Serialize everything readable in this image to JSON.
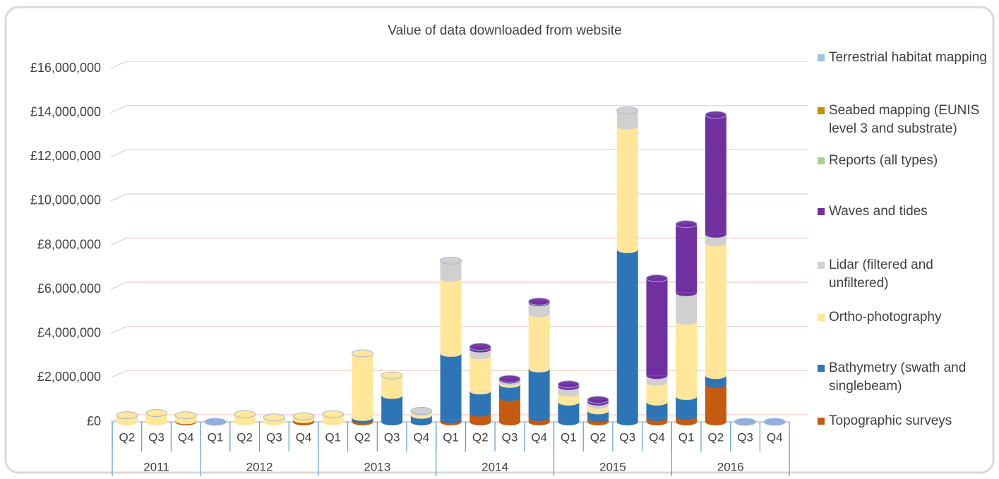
{
  "chart_data": {
    "type": "stacked_bar",
    "title": "Value of data downloaded from website",
    "categories": [
      "Q2",
      "Q3",
      "Q4",
      "Q1",
      "Q2",
      "Q3",
      "Q4",
      "Q1",
      "Q2",
      "Q3",
      "Q4",
      "Q1",
      "Q2",
      "Q3",
      "Q4",
      "Q1",
      "Q2",
      "Q3",
      "Q4",
      "Q1",
      "Q2",
      "Q3",
      "Q4"
    ],
    "category_groups": [
      {
        "label": "2011",
        "span": 3
      },
      {
        "label": "2012",
        "span": 4
      },
      {
        "label": "2013",
        "span": 4
      },
      {
        "label": "2014",
        "span": 4
      },
      {
        "label": "2015",
        "span": 4
      },
      {
        "label": "2016",
        "span": 4
      }
    ],
    "series": [
      {
        "name": "Topographic surveys",
        "color": "#c55a11",
        "values": [
          0,
          0,
          50000,
          0,
          0,
          0,
          100000,
          0,
          100000,
          0,
          0,
          100000,
          400000,
          1100000,
          200000,
          0,
          150000,
          0,
          200000,
          250000,
          1700000,
          0,
          0
        ]
      },
      {
        "name": "Bathymetry (swath and singlebeam)",
        "color": "#2e75b6",
        "values": [
          0,
          0,
          0,
          0,
          0,
          0,
          0,
          0,
          100000,
          1200000,
          300000,
          3000000,
          1000000,
          600000,
          2200000,
          900000,
          350000,
          7800000,
          700000,
          900000,
          400000,
          0,
          0
        ]
      },
      {
        "name": "Ortho-photography",
        "color": "#ffe699",
        "values": [
          300000,
          400000,
          250000,
          0,
          350000,
          200000,
          150000,
          350000,
          2900000,
          900000,
          150000,
          3400000,
          1600000,
          100000,
          2500000,
          400000,
          250000,
          5600000,
          900000,
          3400000,
          6000000,
          0,
          0
        ]
      },
      {
        "name": "Lidar (filtered and unfiltered)",
        "color": "#d0d0d0",
        "values": [
          0,
          0,
          0,
          0,
          0,
          0,
          0,
          0,
          0,
          0,
          50000,
          800000,
          300000,
          100000,
          500000,
          300000,
          150000,
          700000,
          300000,
          1300000,
          400000,
          0,
          0
        ]
      },
      {
        "name": "Waves and tides",
        "color": "#7030a0",
        "values": [
          0,
          0,
          0,
          0,
          0,
          0,
          0,
          0,
          0,
          0,
          0,
          0,
          100000,
          50000,
          50000,
          100000,
          100000,
          0,
          4400000,
          3100000,
          5400000,
          0,
          0
        ]
      },
      {
        "name": "Reports (all types)",
        "color": "#a9d18e",
        "values": [
          0,
          0,
          0,
          0,
          0,
          0,
          0,
          0,
          0,
          0,
          0,
          0,
          0,
          0,
          0,
          0,
          0,
          0,
          0,
          0,
          0,
          0,
          0
        ]
      },
      {
        "name": "Seabed mapping (EUNIS level 3 and substrate)",
        "color": "#bf9000",
        "values": [
          0,
          0,
          0,
          0,
          0,
          0,
          0,
          0,
          0,
          0,
          0,
          0,
          0,
          0,
          0,
          0,
          0,
          0,
          0,
          0,
          0,
          0,
          0
        ]
      },
      {
        "name": "Terrestrial habitat mapping",
        "color": "#9dc3e6",
        "values": [
          0,
          0,
          0,
          0,
          0,
          0,
          0,
          0,
          0,
          0,
          0,
          0,
          0,
          0,
          0,
          0,
          0,
          0,
          0,
          0,
          0,
          0,
          0
        ]
      }
    ],
    "ylim": [
      0,
      16000000
    ],
    "yticks": [
      {
        "value": 0,
        "label": "£0"
      },
      {
        "value": 2000000,
        "label": "£2,000,000"
      },
      {
        "value": 4000000,
        "label": "£4,000,000"
      },
      {
        "value": 6000000,
        "label": "£6,000,000"
      },
      {
        "value": 8000000,
        "label": "£8,000,000"
      },
      {
        "value": 10000000,
        "label": "£10,000,000"
      },
      {
        "value": 12000000,
        "label": "£12,000,000"
      },
      {
        "value": 14000000,
        "label": "£14,000,000"
      },
      {
        "value": 16000000,
        "label": "£16,000,000"
      }
    ],
    "grid": true,
    "legend": "right"
  }
}
